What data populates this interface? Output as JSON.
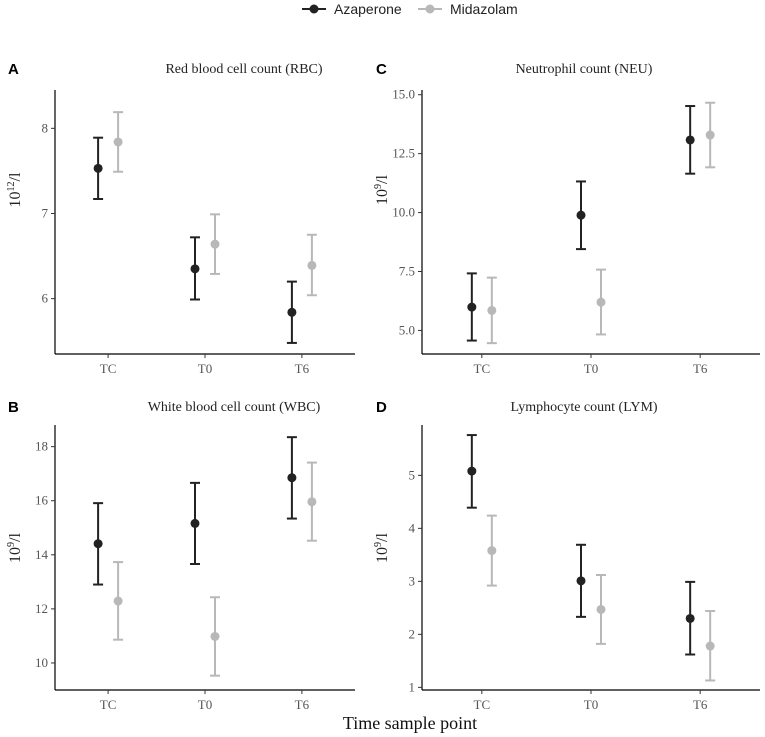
{
  "legend": {
    "entries": [
      {
        "name": "Azaperone",
        "color": "#222222"
      },
      {
        "name": "Midazolam",
        "color": "#b8b8b8"
      }
    ]
  },
  "xlabel": "Time sample point",
  "chart_data": [
    {
      "type": "scatter",
      "panel": "A",
      "title": "Red blood cell count (RBC)",
      "ylabel_base": "10",
      "ylabel_exp": "12",
      "ylabel_unit": "/l",
      "categories": [
        "TC",
        "T0",
        "T6"
      ],
      "ylim": [
        5.35,
        8.45
      ],
      "yticks": [
        6,
        7,
        8
      ],
      "yticklabels": [
        "6",
        "7",
        "8"
      ],
      "series": [
        {
          "name": "Azaperone",
          "color": "#222222",
          "values": [
            7.53,
            6.35,
            5.84
          ],
          "lower": [
            7.17,
            5.99,
            5.48
          ],
          "upper": [
            7.89,
            6.72,
            6.2
          ]
        },
        {
          "name": "Midazolam",
          "color": "#b8b8b8",
          "values": [
            7.84,
            6.64,
            6.39
          ],
          "lower": [
            7.49,
            6.29,
            6.04
          ],
          "upper": [
            8.19,
            6.99,
            6.75
          ]
        }
      ]
    },
    {
      "type": "scatter",
      "panel": "C",
      "title": "Neutrophil count (NEU)",
      "ylabel_base": "10",
      "ylabel_exp": "9",
      "ylabel_unit": "/l",
      "categories": [
        "TC",
        "T0",
        "T6"
      ],
      "ylim": [
        4.0,
        15.2
      ],
      "yticks": [
        5.0,
        7.5,
        10.0,
        12.5,
        15.0
      ],
      "yticklabels": [
        "5.0",
        "7.5",
        "10.0",
        "12.5",
        "15.0"
      ],
      "series": [
        {
          "name": "Azaperone",
          "color": "#222222",
          "values": [
            5.99,
            9.89,
            13.08
          ],
          "lower": [
            4.57,
            8.45,
            11.65
          ],
          "upper": [
            7.42,
            11.32,
            14.52
          ]
        },
        {
          "name": "Midazolam",
          "color": "#b8b8b8",
          "values": [
            5.85,
            6.2,
            13.29
          ],
          "lower": [
            4.46,
            4.83,
            11.92
          ],
          "upper": [
            7.24,
            7.58,
            14.66
          ]
        }
      ]
    },
    {
      "type": "scatter",
      "panel": "B",
      "title": "White blood cell count (WBC)",
      "ylabel_base": "10",
      "ylabel_exp": "9",
      "ylabel_unit": "/l",
      "categories": [
        "TC",
        "T0",
        "T6"
      ],
      "ylim": [
        9.0,
        18.8
      ],
      "yticks": [
        10,
        12,
        14,
        16,
        18
      ],
      "yticklabels": [
        "10",
        "12",
        "14",
        "16",
        "18"
      ],
      "series": [
        {
          "name": "Azaperone",
          "color": "#222222",
          "values": [
            14.41,
            15.16,
            16.85
          ],
          "lower": [
            12.9,
            13.66,
            15.34
          ],
          "upper": [
            15.91,
            16.66,
            18.35
          ]
        },
        {
          "name": "Midazolam",
          "color": "#b8b8b8",
          "values": [
            12.29,
            10.98,
            15.96
          ],
          "lower": [
            10.86,
            9.53,
            14.52
          ],
          "upper": [
            13.73,
            12.43,
            17.41
          ]
        }
      ]
    },
    {
      "type": "scatter",
      "panel": "D",
      "title": "Lymphocyte count (LYM)",
      "ylabel_base": "10",
      "ylabel_exp": "9",
      "ylabel_unit": "/l",
      "categories": [
        "TC",
        "T0",
        "T6"
      ],
      "ylim": [
        0.95,
        5.95
      ],
      "yticks": [
        1,
        2,
        3,
        4,
        5
      ],
      "yticklabels": [
        "1",
        "2",
        "3",
        "4",
        "5"
      ],
      "series": [
        {
          "name": "Azaperone",
          "color": "#222222",
          "values": [
            5.08,
            3.01,
            2.3
          ],
          "lower": [
            4.39,
            2.33,
            1.62
          ],
          "upper": [
            5.76,
            3.69,
            2.99
          ]
        },
        {
          "name": "Midazolam",
          "color": "#b8b8b8",
          "values": [
            3.58,
            2.47,
            1.78
          ],
          "lower": [
            2.92,
            1.82,
            1.13
          ],
          "upper": [
            4.24,
            3.12,
            2.44
          ]
        }
      ]
    }
  ]
}
